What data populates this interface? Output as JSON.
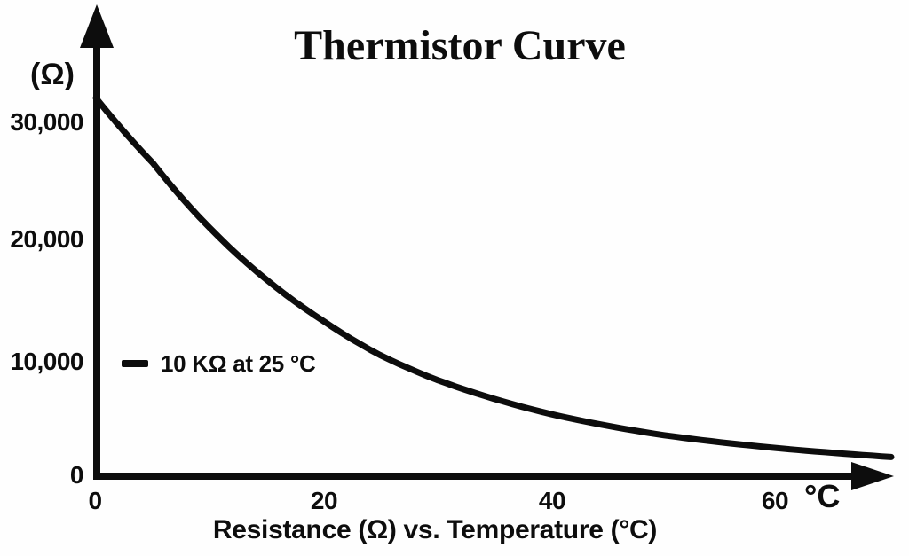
{
  "page": {
    "background": "#fefefe",
    "ink_color": "#0d0d0d"
  },
  "chart_data": {
    "type": "line",
    "title": "Thermistor Curve",
    "caption": "Resistance (Ω) vs. Temperature (°C)",
    "xlabel": "Temperature (°C)",
    "ylabel": "Resistance (Ω)",
    "y_unit_label": "(Ω)",
    "x_unit_label": "°C",
    "y_ticks": [
      "30,000",
      "20,000",
      "10,000",
      "0"
    ],
    "y_tick_values": [
      30000,
      20000,
      10000,
      0
    ],
    "x_ticks": [
      "0",
      "20",
      "40",
      "60"
    ],
    "x_tick_values": [
      0,
      20,
      40,
      60
    ],
    "xlim": [
      0,
      71
    ],
    "ylim": [
      0,
      33500
    ],
    "grid": false,
    "legend": {
      "marker": "line-dash",
      "label": "10 KΩ at 25 °C",
      "position": "inside-left at 10,000 level"
    },
    "series": [
      {
        "name": "thermistor-resistance",
        "color": "#0d0d0d",
        "stroke_width": 7,
        "x": [
          0,
          5,
          10,
          15,
          20,
          25,
          30,
          35,
          40,
          45,
          50,
          55,
          60,
          65,
          70
        ],
        "y": [
          32000,
          26500,
          21000,
          16600,
          13100,
          10200,
          8100,
          6500,
          5200,
          4200,
          3400,
          2800,
          2300,
          1900,
          1550
        ]
      }
    ]
  }
}
